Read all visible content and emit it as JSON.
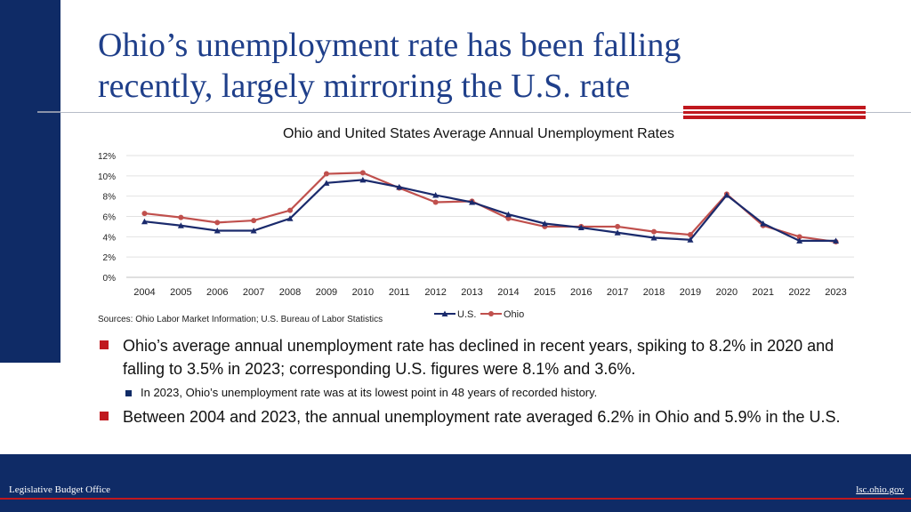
{
  "slide": {
    "title_line1": "Ohio’s unemployment rate has been falling",
    "title_line2": "recently, largely mirroring the U.S. rate",
    "sources": "Sources: Ohio Labor Market Information; U.S. Bureau of Labor Statistics",
    "bullets": [
      "Ohio’s average annual unemployment rate has declined in recent years, spiking to 8.2% in 2020 and falling to 3.5% in 2023; corresponding U.S. figures were 8.1% and 3.6%.",
      "In 2023, Ohio’s unemployment rate was at its lowest point in 48 years of recorded history.",
      "Between 2004 and 2023, the annual unemployment rate averaged 6.2% in Ohio and 5.9% in the U.S."
    ],
    "footer_left": "Legislative Budget Office",
    "footer_right": "lsc.ohio.gov",
    "colors": {
      "navy": "#0f2b66",
      "red": "#c0181e",
      "title": "#1f3f8a"
    }
  },
  "chart_data": {
    "type": "line",
    "title": "Ohio and United States Average Annual Unemployment Rates",
    "categories": [
      "2004",
      "2005",
      "2006",
      "2007",
      "2008",
      "2009",
      "2010",
      "2011",
      "2012",
      "2013",
      "2014",
      "2015",
      "2016",
      "2017",
      "2018",
      "2019",
      "2020",
      "2021",
      "2022",
      "2023"
    ],
    "ylim": [
      0,
      12
    ],
    "yticks": [
      "0%",
      "2%",
      "4%",
      "6%",
      "8%",
      "10%",
      "12%"
    ],
    "grid": true,
    "legend_position": "bottom",
    "series": [
      {
        "name": "U.S.",
        "color": "#1a2a6c",
        "marker": "triangle",
        "values": [
          5.5,
          5.1,
          4.6,
          4.6,
          5.8,
          9.3,
          9.6,
          8.9,
          8.1,
          7.4,
          6.2,
          5.3,
          4.9,
          4.4,
          3.9,
          3.7,
          8.1,
          5.3,
          3.6,
          3.6
        ]
      },
      {
        "name": "Ohio",
        "color": "#c0504d",
        "marker": "circle",
        "values": [
          6.3,
          5.9,
          5.4,
          5.6,
          6.6,
          10.2,
          10.3,
          8.8,
          7.4,
          7.5,
          5.8,
          5.0,
          5.0,
          5.0,
          4.5,
          4.2,
          8.2,
          5.1,
          4.0,
          3.5
        ]
      }
    ]
  }
}
